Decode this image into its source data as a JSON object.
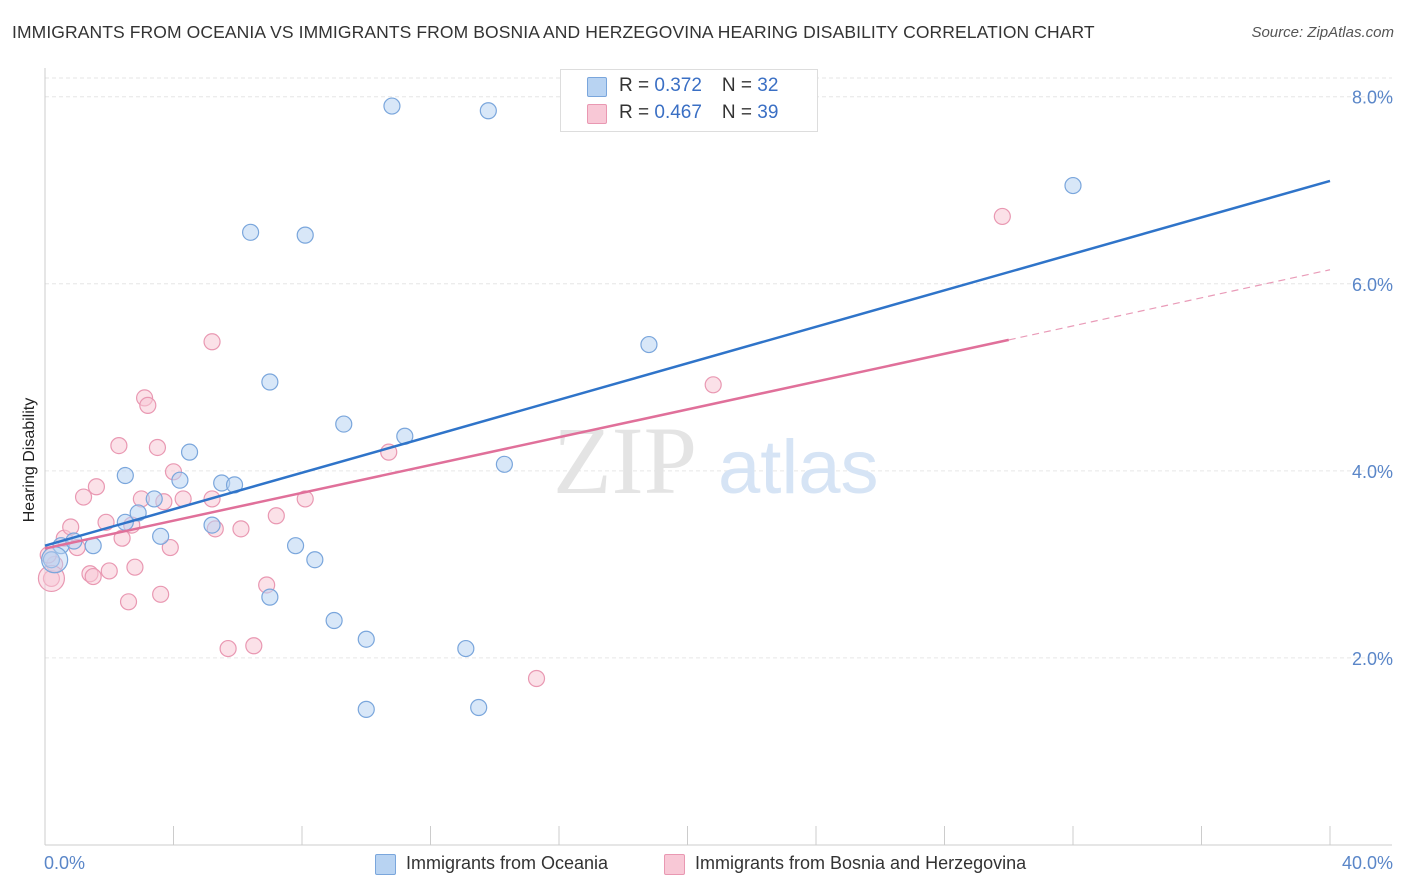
{
  "title": "IMMIGRANTS FROM OCEANIA VS IMMIGRANTS FROM BOSNIA AND HERZEGOVINA HEARING DISABILITY CORRELATION CHART",
  "source": "Source: ZipAtlas.com",
  "watermark": {
    "zip": "ZIP",
    "atlas": "atlas"
  },
  "legend": {
    "series1": {
      "r_label": "R = ",
      "r_value": "0.372",
      "n_label": "N = ",
      "n_value": "32"
    },
    "series2": {
      "r_label": "R = ",
      "r_value": "0.467",
      "n_label": "N = ",
      "n_value": "39"
    }
  },
  "bottom_legend": {
    "series1": "Immigrants from Oceania",
    "series2": "Immigrants from Bosnia and Herzegovina"
  },
  "colors": {
    "series1_fill": "#b8d3f2",
    "series1_stroke": "#7aa6dc",
    "series1_line": "#2f74c9",
    "series2_fill": "#f8c8d6",
    "series2_stroke": "#e998b2",
    "series2_line": "#e0709a",
    "grid": "#e6e6e6",
    "tick_text": "#5a86c8"
  },
  "chart_data": {
    "type": "scatter",
    "title": "IMMIGRANTS FROM OCEANIA VS IMMIGRANTS FROM BOSNIA AND HERZEGOVINA HEARING DISABILITY CORRELATION CHART",
    "xlabel": "",
    "ylabel": "Hearing Disability",
    "xlim": [
      0,
      40
    ],
    "ylim": [
      0,
      8.2
    ],
    "x_tick_labels": [
      "0.0%",
      "40.0%"
    ],
    "x_ticks": [
      0,
      4,
      8,
      12,
      16,
      20,
      24,
      28,
      32,
      36,
      40
    ],
    "y_ticks": [
      2,
      4,
      6,
      8
    ],
    "y_tick_labels": [
      "2.0%",
      "4.0%",
      "6.0%",
      "8.0%"
    ],
    "grid": true,
    "legend_position": "top-center",
    "series": [
      {
        "name": "Immigrants from Oceania",
        "r": 0.372,
        "n": 32,
        "trend": {
          "x": [
            0,
            40
          ],
          "y": [
            3.2,
            7.1
          ]
        },
        "points": [
          [
            0.2,
            3.05
          ],
          [
            0.5,
            3.2
          ],
          [
            0.9,
            3.25
          ],
          [
            1.5,
            3.2
          ],
          [
            2.5,
            3.45
          ],
          [
            2.5,
            3.95
          ],
          [
            2.9,
            3.55
          ],
          [
            3.4,
            3.7
          ],
          [
            3.6,
            3.3
          ],
          [
            4.2,
            3.9
          ],
          [
            4.5,
            4.2
          ],
          [
            5.2,
            3.42
          ],
          [
            5.5,
            3.87
          ],
          [
            5.9,
            3.85
          ],
          [
            6.4,
            6.55
          ],
          [
            7.0,
            4.95
          ],
          [
            7.0,
            2.65
          ],
          [
            7.8,
            3.2
          ],
          [
            8.1,
            6.52
          ],
          [
            8.4,
            3.05
          ],
          [
            9.0,
            2.4
          ],
          [
            9.3,
            4.5
          ],
          [
            10.0,
            2.2
          ],
          [
            10.0,
            1.45
          ],
          [
            10.8,
            7.9
          ],
          [
            11.2,
            4.37
          ],
          [
            13.1,
            2.1
          ],
          [
            13.5,
            1.47
          ],
          [
            13.8,
            7.85
          ],
          [
            14.3,
            4.07
          ],
          [
            18.8,
            5.35
          ],
          [
            32.0,
            7.05
          ]
        ]
      },
      {
        "name": "Immigrants from Bosnia and Herzegovina",
        "r": 0.467,
        "n": 39,
        "trend": {
          "x": [
            0,
            30
          ],
          "y": [
            3.17,
            5.4
          ]
        },
        "trend_dashed": {
          "x": [
            30,
            40
          ],
          "y": [
            5.4,
            6.15
          ]
        },
        "points": [
          [
            0.2,
            2.85
          ],
          [
            0.3,
            3.0
          ],
          [
            0.6,
            3.28
          ],
          [
            0.8,
            3.4
          ],
          [
            1.0,
            3.18
          ],
          [
            1.2,
            3.72
          ],
          [
            1.4,
            2.9
          ],
          [
            1.5,
            2.87
          ],
          [
            1.6,
            3.83
          ],
          [
            1.9,
            3.45
          ],
          [
            2.0,
            2.93
          ],
          [
            2.3,
            4.27
          ],
          [
            2.4,
            3.28
          ],
          [
            2.6,
            2.6
          ],
          [
            2.7,
            3.42
          ],
          [
            2.8,
            2.97
          ],
          [
            3.0,
            3.7
          ],
          [
            3.1,
            4.78
          ],
          [
            3.2,
            4.7
          ],
          [
            3.5,
            4.25
          ],
          [
            3.6,
            2.68
          ],
          [
            3.7,
            3.67
          ],
          [
            3.9,
            3.18
          ],
          [
            4.0,
            3.99
          ],
          [
            4.3,
            3.7
          ],
          [
            5.2,
            3.7
          ],
          [
            5.3,
            3.38
          ],
          [
            5.2,
            5.38
          ],
          [
            5.7,
            2.1
          ],
          [
            6.1,
            3.38
          ],
          [
            6.5,
            2.13
          ],
          [
            6.9,
            2.78
          ],
          [
            7.2,
            3.52
          ],
          [
            8.1,
            3.7
          ],
          [
            10.7,
            4.2
          ],
          [
            15.3,
            1.78
          ],
          [
            20.8,
            4.92
          ],
          [
            29.8,
            6.72
          ],
          [
            0.1,
            3.1
          ]
        ]
      }
    ]
  }
}
